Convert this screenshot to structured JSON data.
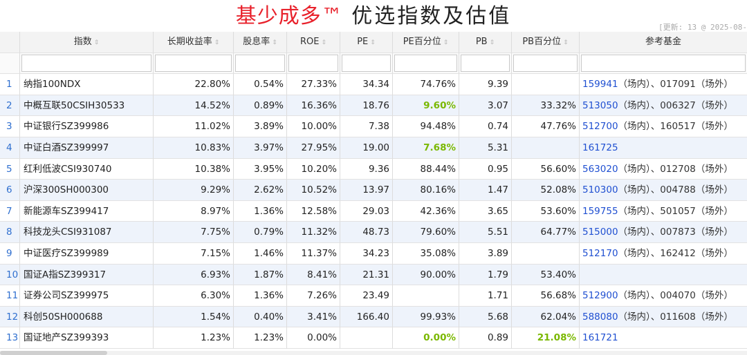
{
  "title": {
    "brand": "基少成多™",
    "rest": " 优选指数及估值"
  },
  "update_text": "[更新: 13 @ 2025-08-",
  "columns": [
    "",
    "指数",
    "长期收益率",
    "股息率",
    "ROE",
    "PE",
    "PE百分位",
    "PB",
    "PB百分位",
    "参考基金"
  ],
  "sort_icon": "sort-arrows-icon",
  "colors": {
    "brand": "#e8212b",
    "highlight_green": "#7ab800",
    "fund_code": "#1f4fd1",
    "row_alt": "#eef3fb"
  },
  "rows": [
    {
      "n": "1",
      "name": "纳指100NDX",
      "yield": "22.80%",
      "div": "0.54%",
      "roe": "27.33%",
      "pe": "34.34",
      "pep": "74.76%",
      "pep_hl": false,
      "pb": "9.39",
      "pbp": "",
      "pbp_hl": false,
      "fund_code1": "159941",
      "fund_rest": "（场内）、017091（场外）",
      "fund_code2": ""
    },
    {
      "n": "2",
      "name": "中概互联50CSIH30533",
      "yield": "14.52%",
      "div": "0.89%",
      "roe": "16.36%",
      "pe": "18.76",
      "pep": "9.60%",
      "pep_hl": true,
      "pb": "3.07",
      "pbp": "33.32%",
      "pbp_hl": false,
      "fund_code1": "513050",
      "fund_rest": "（场内）、006327（场外）",
      "fund_code2": ""
    },
    {
      "n": "3",
      "name": "中证银行SZ399986",
      "yield": "11.02%",
      "div": "3.89%",
      "roe": "10.00%",
      "pe": "7.38",
      "pep": "94.48%",
      "pep_hl": false,
      "pb": "0.74",
      "pbp": "47.76%",
      "pbp_hl": false,
      "fund_code1": "512700",
      "fund_rest": "（场内）、160517（场外）",
      "fund_code2": ""
    },
    {
      "n": "4",
      "name": "中证白酒SZ399997",
      "yield": "10.83%",
      "div": "3.97%",
      "roe": "27.95%",
      "pe": "19.00",
      "pep": "7.68%",
      "pep_hl": true,
      "pb": "5.31",
      "pbp": "",
      "pbp_hl": false,
      "fund_code1": "161725",
      "fund_rest": "",
      "fund_code2": ""
    },
    {
      "n": "5",
      "name": "红利低波CSI930740",
      "yield": "10.38%",
      "div": "3.95%",
      "roe": "10.20%",
      "pe": "9.36",
      "pep": "88.44%",
      "pep_hl": false,
      "pb": "0.95",
      "pbp": "56.60%",
      "pbp_hl": false,
      "fund_code1": "563020",
      "fund_rest": "（场内）、012708（场外）",
      "fund_code2": ""
    },
    {
      "n": "6",
      "name": "沪深300SH000300",
      "yield": "9.29%",
      "div": "2.62%",
      "roe": "10.52%",
      "pe": "13.97",
      "pep": "80.16%",
      "pep_hl": false,
      "pb": "1.47",
      "pbp": "52.08%",
      "pbp_hl": false,
      "fund_code1": "510300",
      "fund_rest": "（场内）、004788（场外）",
      "fund_code2": ""
    },
    {
      "n": "7",
      "name": "新能源车SZ399417",
      "yield": "8.97%",
      "div": "1.36%",
      "roe": "12.58%",
      "pe": "29.03",
      "pep": "42.36%",
      "pep_hl": false,
      "pb": "3.65",
      "pbp": "53.60%",
      "pbp_hl": false,
      "fund_code1": "159755",
      "fund_rest": "（场内）、501057（场外）",
      "fund_code2": ""
    },
    {
      "n": "8",
      "name": "科技龙头CSI931087",
      "yield": "7.75%",
      "div": "0.79%",
      "roe": "11.32%",
      "pe": "48.73",
      "pep": "79.60%",
      "pep_hl": false,
      "pb": "5.51",
      "pbp": "64.77%",
      "pbp_hl": false,
      "fund_code1": "515000",
      "fund_rest": "（场内）、007873（场外）",
      "fund_code2": ""
    },
    {
      "n": "9",
      "name": "中证医疗SZ399989",
      "yield": "7.15%",
      "div": "1.46%",
      "roe": "11.37%",
      "pe": "34.23",
      "pep": "35.08%",
      "pep_hl": false,
      "pb": "3.89",
      "pbp": "",
      "pbp_hl": false,
      "fund_code1": "512170",
      "fund_rest": "（场内）、162412（场外）",
      "fund_code2": ""
    },
    {
      "n": "10",
      "name": "国证A指SZ399317",
      "yield": "6.93%",
      "div": "1.87%",
      "roe": "8.41%",
      "pe": "21.31",
      "pep": "90.00%",
      "pep_hl": false,
      "pb": "1.79",
      "pbp": "53.40%",
      "pbp_hl": false,
      "fund_code1": "",
      "fund_rest": "",
      "fund_code2": ""
    },
    {
      "n": "11",
      "name": "证券公司SZ399975",
      "yield": "6.30%",
      "div": "1.36%",
      "roe": "7.26%",
      "pe": "23.49",
      "pep": "",
      "pep_hl": false,
      "pb": "1.71",
      "pbp": "56.68%",
      "pbp_hl": false,
      "fund_code1": "512900",
      "fund_rest": "（场内）、004070（场外）",
      "fund_code2": ""
    },
    {
      "n": "12",
      "name": "科创50SH000688",
      "yield": "1.54%",
      "div": "0.40%",
      "roe": "3.41%",
      "pe": "166.40",
      "pep": "99.93%",
      "pep_hl": false,
      "pb": "5.68",
      "pbp": "62.04%",
      "pbp_hl": false,
      "fund_code1": "588080",
      "fund_rest": "（场内）、011608（场外）",
      "fund_code2": ""
    },
    {
      "n": "13",
      "name": "国证地产SZ399393",
      "yield": "1.23%",
      "div": "1.23%",
      "roe": "0.00%",
      "pe": "",
      "pep": "0.00%",
      "pep_hl": true,
      "pb": "0.89",
      "pbp": "21.08%",
      "pbp_hl": true,
      "fund_code1": "161721",
      "fund_rest": "",
      "fund_code2": ""
    }
  ]
}
